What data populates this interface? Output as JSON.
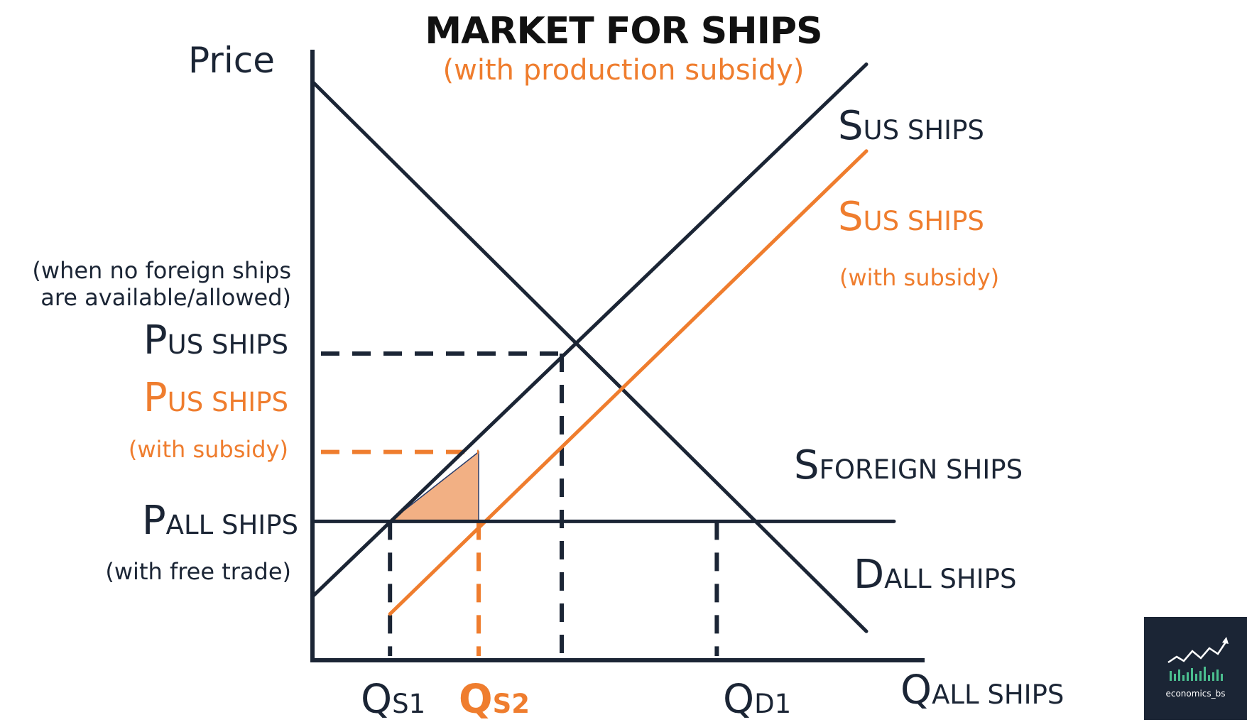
{
  "chart_data": {
    "type": "line",
    "title": "MARKET FOR SHIPS",
    "subtitle": "(with production subsidy)",
    "ylabel": "Price",
    "xlabel": {
      "main": "Q",
      "sub": "ALL SHIPS"
    },
    "series": [
      {
        "key": "demand",
        "label_main": "D",
        "label_sub": "ALL SHIPS",
        "color": "#1b2535",
        "points": [
          [
            0,
            10.0
          ],
          [
            10.0,
            0.5
          ]
        ]
      },
      {
        "key": "supply_us",
        "label_main": "S",
        "label_sub": "US SHIPS",
        "color": "#1b2535",
        "points": [
          [
            0,
            1.1
          ],
          [
            10.0,
            10.3
          ]
        ]
      },
      {
        "key": "supply_us_subsidy",
        "label_main": "S",
        "label_sub": "US SHIPS",
        "label_note": "(with subsidy)",
        "color": "#ef7d2e",
        "points": [
          [
            1.4,
            0.8
          ],
          [
            10.0,
            8.8
          ]
        ]
      },
      {
        "key": "supply_foreign",
        "label_main": "S",
        "label_sub": "FOREIGN SHIPS",
        "color": "#1b2535",
        "points": [
          [
            0,
            2.4
          ],
          [
            10.5,
            2.4
          ]
        ]
      }
    ],
    "price_levels": [
      {
        "key": "p_us",
        "main": "P",
        "sub": "US SHIPS",
        "note": "(when no foreign ships\nare available/allowed)",
        "value": 5.3,
        "color": "#1b2535"
      },
      {
        "key": "p_us_subsidy",
        "main": "P",
        "sub": "US SHIPS",
        "note": "(with subsidy)",
        "value": 3.6,
        "color": "#ef7d2e"
      },
      {
        "key": "p_all",
        "main": "P",
        "sub": "ALL SHIPS",
        "note": "(with free trade)",
        "value": 2.4,
        "color": "#1b2535"
      }
    ],
    "quantities": [
      {
        "key": "qs1",
        "main": "Q",
        "sub": "S1",
        "value": 1.4,
        "color": "#1b2535"
      },
      {
        "key": "qs2",
        "main": "Q",
        "sub": "S2",
        "value": 3.0,
        "color": "#ef7d2e"
      },
      {
        "key": "qe",
        "main": "",
        "sub": "",
        "value": 4.5,
        "color": "#1b2535"
      },
      {
        "key": "qd1",
        "main": "Q",
        "sub": "D1",
        "value": 7.3,
        "color": "#1b2535"
      }
    ],
    "shaded_area": {
      "points": [
        [
          1.4,
          2.4
        ],
        [
          3.0,
          3.6
        ],
        [
          3.0,
          2.4
        ]
      ],
      "color": "#f2b084"
    },
    "xlim": [
      0,
      10.0
    ],
    "ylim": [
      0,
      10.0
    ],
    "grid": false
  },
  "logo": {
    "text": "economics_bs"
  }
}
